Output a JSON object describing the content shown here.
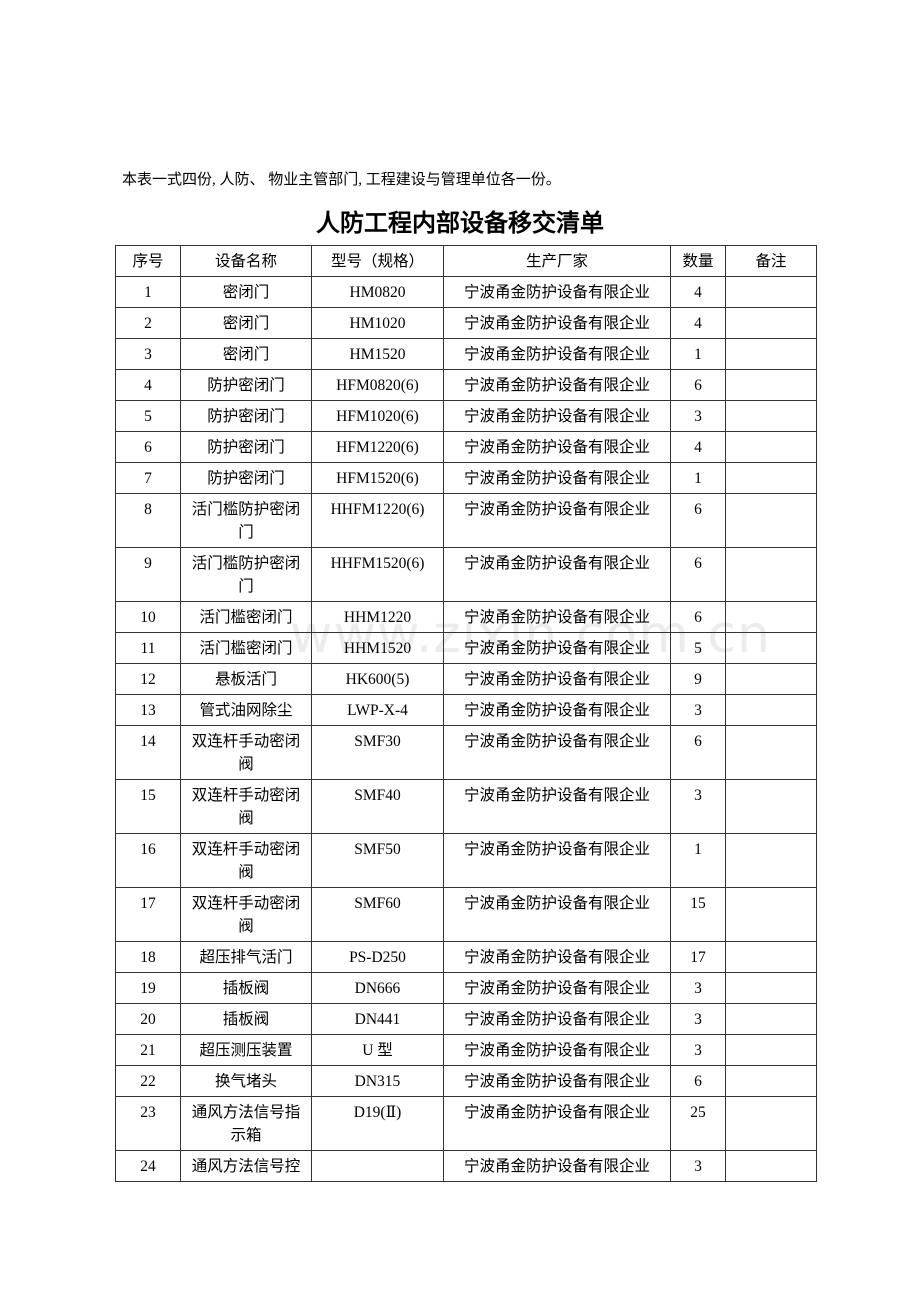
{
  "note": "本表一式四份, 人防、 物业主管部门, 工程建设与管理单位各一份。",
  "title": "人防工程内部设备移交清单",
  "watermark": "www.zixin.com.cn",
  "table": {
    "headers": [
      "序号",
      "设备名称",
      "型号（规格）",
      "生产厂家",
      "数量",
      "备注"
    ],
    "rows": [
      [
        "1",
        "密闭门",
        "HM0820",
        "宁波甬金防护设备有限企业",
        "4",
        ""
      ],
      [
        "2",
        "密闭门",
        "HM1020",
        "宁波甬金防护设备有限企业",
        "4",
        ""
      ],
      [
        "3",
        "密闭门",
        "HM1520",
        "宁波甬金防护设备有限企业",
        "1",
        ""
      ],
      [
        "4",
        "防护密闭门",
        "HFM0820(6)",
        "宁波甬金防护设备有限企业",
        "6",
        ""
      ],
      [
        "5",
        "防护密闭门",
        "HFM1020(6)",
        "宁波甬金防护设备有限企业",
        "3",
        ""
      ],
      [
        "6",
        "防护密闭门",
        "HFM1220(6)",
        "宁波甬金防护设备有限企业",
        "4",
        ""
      ],
      [
        "7",
        "防护密闭门",
        "HFM1520(6)",
        "宁波甬金防护设备有限企业",
        "1",
        ""
      ],
      [
        "8",
        "活门槛防护密闭门",
        "HHFM1220(6)",
        "宁波甬金防护设备有限企业",
        "6",
        ""
      ],
      [
        "9",
        "活门槛防护密闭门",
        "HHFM1520(6)",
        "宁波甬金防护设备有限企业",
        "6",
        ""
      ],
      [
        "10",
        "活门槛密闭门",
        "HHM1220",
        "宁波甬金防护设备有限企业",
        "6",
        ""
      ],
      [
        "11",
        "活门槛密闭门",
        "HHM1520",
        "宁波甬金防护设备有限企业",
        "5",
        ""
      ],
      [
        "12",
        "悬板活门",
        "HK600(5)",
        "宁波甬金防护设备有限企业",
        "9",
        ""
      ],
      [
        "13",
        "管式油网除尘",
        "LWP-X-4",
        "宁波甬金防护设备有限企业",
        "3",
        ""
      ],
      [
        "14",
        "双连杆手动密闭阀",
        "SMF30",
        "宁波甬金防护设备有限企业",
        "6",
        ""
      ],
      [
        "15",
        "双连杆手动密闭阀",
        "SMF40",
        "宁波甬金防护设备有限企业",
        "3",
        ""
      ],
      [
        "16",
        "双连杆手动密闭阀",
        "SMF50",
        "宁波甬金防护设备有限企业",
        "1",
        ""
      ],
      [
        "17",
        "双连杆手动密闭阀",
        "SMF60",
        "宁波甬金防护设备有限企业",
        "15",
        ""
      ],
      [
        "18",
        "超压排气活门",
        "PS-D250",
        "宁波甬金防护设备有限企业",
        "17",
        ""
      ],
      [
        "19",
        "插板阀",
        "DN666",
        "宁波甬金防护设备有限企业",
        "3",
        ""
      ],
      [
        "20",
        "插板阀",
        "DN441",
        "宁波甬金防护设备有限企业",
        "3",
        ""
      ],
      [
        "21",
        "超压测压装置",
        "U 型",
        "宁波甬金防护设备有限企业",
        "3",
        ""
      ],
      [
        "22",
        "换气堵头",
        "DN315",
        "宁波甬金防护设备有限企业",
        "6",
        ""
      ],
      [
        "23",
        "通风方法信号指示箱",
        "D19(Ⅱ)",
        "宁波甬金防护设备有限企业",
        "25",
        ""
      ],
      [
        "24",
        "通风方法信号控",
        "",
        "宁波甬金防护设备有限企业",
        "3",
        ""
      ]
    ]
  }
}
